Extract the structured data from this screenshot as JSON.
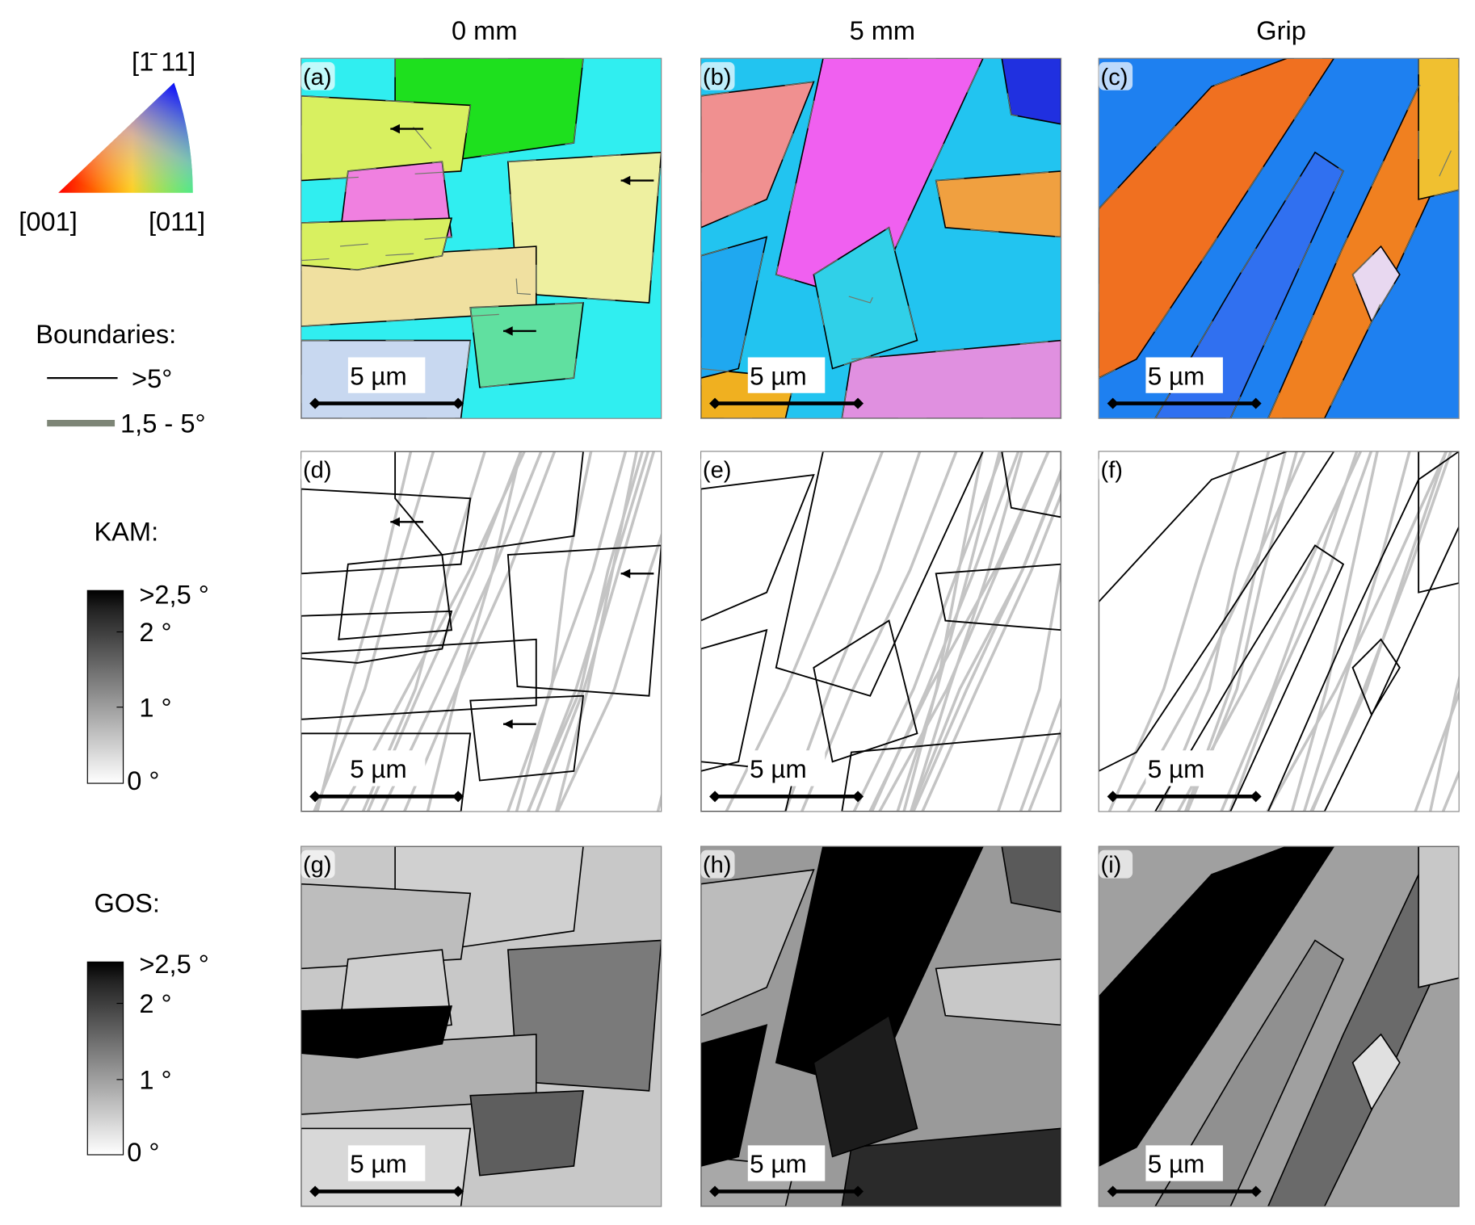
{
  "columns": [
    "0 mm",
    "5 mm",
    "Grip"
  ],
  "ipf_key": {
    "top": "[1̄ 11]",
    "left": "[001]",
    "right": "[011]"
  },
  "boundaries": {
    "title": "Boundaries:",
    "items": [
      ">5°",
      "1,5 - 5°"
    ]
  },
  "kam": {
    "title": "KAM:",
    "labels": [
      ">2,5 °",
      "2 °",
      "1 °",
      "0 °"
    ]
  },
  "gos": {
    "title": "GOS:",
    "labels": [
      ">2,5 °",
      "2 °",
      "1 °",
      "0 °"
    ]
  },
  "panels": [
    {
      "label": "(a)",
      "scale_bar": "5 µm"
    },
    {
      "label": "(b)",
      "scale_bar": "5 µm"
    },
    {
      "label": "(c)",
      "scale_bar": "5 µm"
    },
    {
      "label": "(d)",
      "scale_bar": "5 µm"
    },
    {
      "label": "(e)",
      "scale_bar": "5 µm"
    },
    {
      "label": "(f)",
      "scale_bar": "5 µm"
    },
    {
      "label": "(g)",
      "scale_bar": "5 µm"
    },
    {
      "label": "(h)",
      "scale_bar": "5 µm"
    },
    {
      "label": "(i)",
      "scale_bar": "5 µm"
    }
  ]
}
